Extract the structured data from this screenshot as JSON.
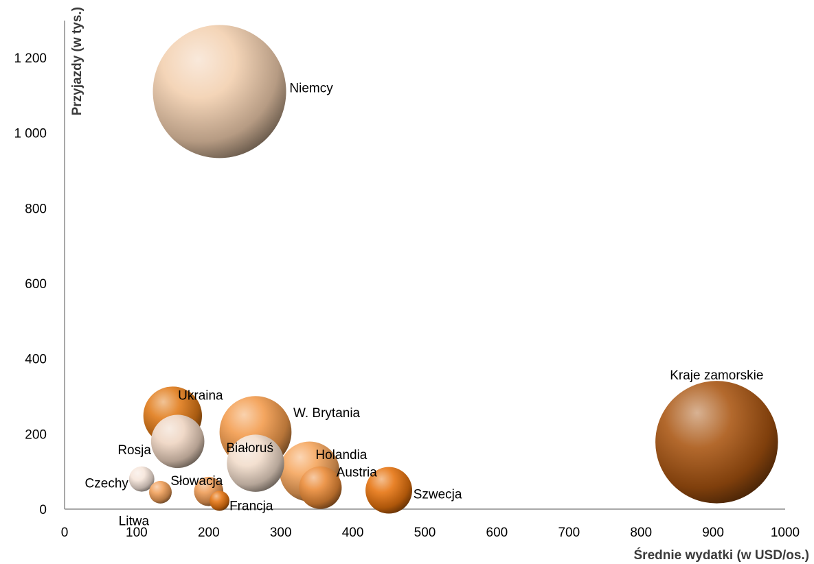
{
  "chart_data": {
    "type": "bubble",
    "title": "",
    "xlabel": "Średnie wydatki (w USD/os.)",
    "ylabel": "Przyjazdy (w tys.)",
    "xlim": [
      0,
      1000
    ],
    "ylim": [
      0,
      1200
    ],
    "x_ticks": [
      0,
      100,
      200,
      300,
      400,
      500,
      600,
      700,
      800,
      900,
      1000
    ],
    "y_ticks": [
      0,
      200,
      400,
      600,
      800,
      1000,
      1200
    ],
    "x_tick_labels": [
      "0",
      "100",
      "200",
      "300",
      "400",
      "500",
      "600",
      "700",
      "800",
      "900",
      "1000"
    ],
    "y_tick_labels": [
      "0",
      "200",
      "400",
      "600",
      "800",
      "1 000",
      "1 200"
    ],
    "grid": false,
    "legend": "none",
    "points": [
      {
        "label": "Niemcy",
        "x": 215,
        "y": 1110,
        "size": 1.0,
        "color": "#f2cfae"
      },
      {
        "label": "Kraje zamorskie",
        "x": 905,
        "y": 178,
        "size": 0.92,
        "color": "#a95410"
      },
      {
        "label": "Ukraina",
        "x": 150,
        "y": 248,
        "size": 0.44,
        "color": "#e07916"
      },
      {
        "label": "W. Brytania",
        "x": 265,
        "y": 205,
        "size": 0.54,
        "color": "#f29a4a"
      },
      {
        "label": "Rosja",
        "x": 157,
        "y": 180,
        "size": 0.4,
        "color": "#eed4c0"
      },
      {
        "label": "Białoruś",
        "x": 265,
        "y": 122,
        "size": 0.43,
        "color": "#f1dcca"
      },
      {
        "label": "Holandia",
        "x": 340,
        "y": 100,
        "size": 0.45,
        "color": "#f5a45a"
      },
      {
        "label": "Austria",
        "x": 355,
        "y": 57,
        "size": 0.32,
        "color": "#ea8a36"
      },
      {
        "label": "Szwecja",
        "x": 450,
        "y": 50,
        "size": 0.35,
        "color": "#e6720d"
      },
      {
        "label": "Czechy",
        "x": 107,
        "y": 80,
        "size": 0.19,
        "color": "#f6e5da"
      },
      {
        "label": "Słowacja",
        "x": 200,
        "y": 47,
        "size": 0.22,
        "color": "#ee9b55"
      },
      {
        "label": "Litwa",
        "x": 133,
        "y": 45,
        "size": 0.17,
        "color": "#f09e58"
      },
      {
        "label": "Francja",
        "x": 215,
        "y": 22,
        "size": 0.15,
        "color": "#e5730f"
      }
    ]
  }
}
